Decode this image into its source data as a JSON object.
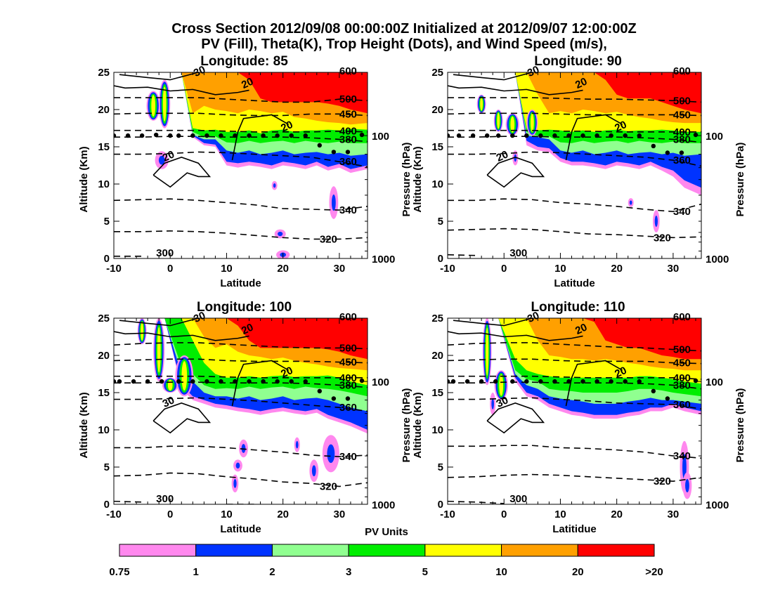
{
  "header": {
    "title_line1": "Cross Section 2012/09/08 00:00:00Z Initialized at 2012/09/07 12:00:00Z",
    "title_line2": "PV (Fill), Theta(K), Trop Height (Dots), and Wind Speed (m/s),"
  },
  "chart_data": [
    {
      "type": "contour",
      "title": "Longitude:   85",
      "longitude": 85,
      "xlabel": "Latitude",
      "ylabel": "Altitude (Km)",
      "ylabel_right": "Pressure (hPa)",
      "xlim": [
        -10,
        35
      ],
      "ylim": [
        0,
        25
      ],
      "xticks": [
        "-10",
        "0",
        "10",
        "20",
        "30"
      ],
      "yticks": [
        "0",
        "5",
        "10",
        "15",
        "20",
        "25"
      ],
      "yticks_right": [
        {
          "label": "100",
          "alt": 16.5
        },
        {
          "label": "1000",
          "alt": 0
        }
      ],
      "theta_contours": [
        {
          "label": "600",
          "y": [
            25.2,
            25.2,
            25.2,
            25.2,
            25.2,
            25.2,
            25.2,
            25.2,
            25.2,
            25.2
          ]
        },
        {
          "label": "500",
          "y": [
            21.6,
            21.6,
            21.6,
            21.6,
            21.4,
            21.2,
            21.0,
            21.0,
            21.4,
            21.2
          ]
        },
        {
          "label": "450",
          "y": [
            19.4,
            19.5,
            19.5,
            19.5,
            19.3,
            19.2,
            19.2,
            19.4,
            19.4,
            19.2
          ]
        },
        {
          "label": "400",
          "y": [
            17.2,
            17.2,
            17.2,
            17.2,
            17.1,
            17.0,
            17.0,
            17.0,
            17.1,
            17.0
          ]
        },
        {
          "label": "380",
          "y": [
            16.3,
            16.3,
            16.4,
            16.4,
            16.3,
            16.3,
            16.3,
            16.2,
            16.0,
            15.7
          ]
        },
        {
          "label": "360",
          "y": [
            14.0,
            14.0,
            14.1,
            14.3,
            14.2,
            14.0,
            13.8,
            13.6,
            13.0,
            12.3
          ]
        },
        {
          "label": "340",
          "y": [
            7.8,
            7.9,
            8.0,
            7.8,
            7.5,
            7.2,
            6.7,
            6.6,
            6.5,
            7.0
          ]
        },
        {
          "label": "320",
          "y": [
            3.6,
            3.6,
            3.7,
            3.6,
            3.4,
            3.1,
            2.8,
            2.6,
            2.6,
            2.8
          ]
        },
        {
          "label": "300",
          "y": [
            0.3,
            0.3,
            null,
            null,
            null,
            null,
            null,
            null,
            null,
            null
          ]
        }
      ],
      "theta_x": [
        -10,
        -5,
        0,
        5,
        10,
        15,
        20,
        25,
        30,
        35
      ],
      "trop_dots": [
        [
          -10,
          16.5
        ],
        [
          -7.5,
          16.5
        ],
        [
          -5,
          16.5
        ],
        [
          -2.5,
          16.6
        ],
        [
          0,
          16.5
        ],
        [
          1.5,
          16.5
        ],
        [
          4,
          16.5
        ],
        [
          6.5,
          16.5
        ],
        [
          9,
          16.5
        ],
        [
          11.5,
          16.5
        ],
        [
          14,
          16.5
        ],
        [
          16.5,
          16.5
        ],
        [
          19,
          16.5
        ],
        [
          21.5,
          16.5
        ],
        [
          24,
          16.5
        ],
        [
          26.5,
          15.2
        ],
        [
          29,
          14.3
        ],
        [
          31.5,
          14.3
        ],
        [
          34,
          16.6
        ]
      ],
      "wind_labels": [
        "30",
        "20",
        "20",
        "20"
      ]
    },
    {
      "type": "contour",
      "title": "Longitude:   90",
      "longitude": 90,
      "xlabel": "Latitude",
      "ylabel": "Altitude (Km)",
      "ylabel_right": "Pressure (hPa)",
      "xlim": [
        -10,
        35
      ],
      "ylim": [
        0,
        25
      ],
      "xticks": [
        "-10",
        "0",
        "10",
        "20",
        "30"
      ],
      "yticks": [
        "0",
        "5",
        "10",
        "15",
        "20",
        "25"
      ],
      "yticks_right": [
        {
          "label": "100",
          "alt": 16.5
        },
        {
          "label": "1000",
          "alt": 0
        }
      ],
      "theta_contours": [
        {
          "label": "600",
          "y": [
            25.2,
            25.2,
            25.2,
            25.2,
            25.2,
            25.2,
            25.2,
            25.2,
            25.2,
            25.2
          ]
        },
        {
          "label": "500",
          "y": [
            21.6,
            21.6,
            21.6,
            21.6,
            21.5,
            21.4,
            21.4,
            21.3,
            21.2,
            21.0
          ]
        },
        {
          "label": "450",
          "y": [
            19.4,
            19.5,
            19.5,
            19.5,
            19.4,
            19.3,
            19.3,
            19.3,
            19.3,
            19.2
          ]
        },
        {
          "label": "400",
          "y": [
            17.2,
            17.2,
            17.2,
            17.2,
            17.1,
            17.1,
            17.0,
            17.0,
            17.0,
            17.0
          ]
        },
        {
          "label": "380",
          "y": [
            16.3,
            16.3,
            16.4,
            16.4,
            16.3,
            16.3,
            16.3,
            16.2,
            16.0,
            15.6
          ]
        },
        {
          "label": "360",
          "y": [
            14.0,
            14.0,
            14.1,
            14.3,
            14.2,
            14.0,
            13.8,
            13.6,
            13.2,
            12.4
          ]
        },
        {
          "label": "340",
          "y": [
            7.8,
            7.8,
            8.0,
            7.9,
            7.5,
            7.3,
            7.0,
            6.6,
            6.3,
            7.3
          ]
        },
        {
          "label": "320",
          "y": [
            3.8,
            3.9,
            4.0,
            3.9,
            3.6,
            3.3,
            3.2,
            3.0,
            2.8,
            2.9
          ]
        },
        {
          "label": "300",
          "y": [
            0.5,
            0.4,
            null,
            null,
            null,
            null,
            null,
            null,
            null,
            null
          ]
        }
      ],
      "theta_x": [
        -10,
        -5,
        0,
        5,
        10,
        15,
        20,
        25,
        30,
        35
      ],
      "trop_dots": [
        [
          -10,
          16.5
        ],
        [
          -8,
          16.5
        ],
        [
          -5.5,
          16.5
        ],
        [
          -3,
          16.5
        ],
        [
          -1,
          16.5
        ],
        [
          1.5,
          16.5
        ],
        [
          4,
          16.5
        ],
        [
          6.5,
          16.5
        ],
        [
          9,
          16.5
        ],
        [
          11.5,
          16.5
        ],
        [
          14,
          16.5
        ],
        [
          16.5,
          16.5
        ],
        [
          19,
          16.5
        ],
        [
          21.5,
          16.5
        ],
        [
          24,
          16.5
        ],
        [
          26.5,
          15.1
        ],
        [
          29,
          14.2
        ],
        [
          31.5,
          14.2
        ],
        [
          34,
          16.6
        ]
      ],
      "wind_labels": [
        "30",
        "20",
        "20",
        "20"
      ]
    },
    {
      "type": "contour",
      "title": "Longitude:  100",
      "longitude": 100,
      "xlabel": "Latitude",
      "ylabel": "Altitude (Km)",
      "ylabel_right": "Pressure (hPa)",
      "xlim": [
        -10,
        35
      ],
      "ylim": [
        0,
        25
      ],
      "xticks": [
        "-10",
        "0",
        "10",
        "20",
        "30"
      ],
      "yticks": [
        "0",
        "5",
        "10",
        "15",
        "20",
        "25"
      ],
      "yticks_right": [
        {
          "label": "100",
          "alt": 16.5
        },
        {
          "label": "1000",
          "alt": 0
        }
      ],
      "theta_contours": [
        {
          "label": "600",
          "y": [
            25.2,
            25.2,
            25.2,
            25.2,
            25.2,
            25.2,
            25.2,
            25.2,
            25.2,
            25.2
          ]
        },
        {
          "label": "500",
          "y": [
            21.4,
            21.6,
            21.7,
            21.7,
            21.5,
            21.3,
            21.1,
            21.0,
            21.0,
            20.9
          ]
        },
        {
          "label": "450",
          "y": [
            19.3,
            19.4,
            19.5,
            19.5,
            19.3,
            19.2,
            19.2,
            19.2,
            19.1,
            19.0
          ]
        },
        {
          "label": "400",
          "y": [
            17.2,
            17.2,
            17.2,
            17.2,
            17.1,
            17.0,
            17.0,
            17.0,
            17.0,
            17.0
          ]
        },
        {
          "label": "380",
          "y": [
            16.3,
            16.3,
            16.4,
            16.4,
            16.3,
            16.3,
            16.3,
            16.2,
            16.0,
            15.7
          ]
        },
        {
          "label": "360",
          "y": [
            14.1,
            14.1,
            14.2,
            14.3,
            14.1,
            13.9,
            13.6,
            13.3,
            13.0,
            12.5
          ]
        },
        {
          "label": "340",
          "y": [
            7.6,
            7.6,
            7.8,
            7.8,
            7.6,
            7.3,
            7.0,
            6.6,
            6.4,
            6.6
          ]
        },
        {
          "label": "320",
          "y": [
            3.8,
            3.9,
            4.2,
            4.1,
            3.7,
            3.4,
            3.0,
            2.8,
            2.4,
            2.9
          ]
        },
        {
          "label": "300",
          "y": [
            0.4,
            0.3,
            null,
            null,
            0.0,
            0.0,
            null,
            null,
            null,
            null
          ]
        }
      ],
      "theta_x": [
        -10,
        -5,
        0,
        5,
        10,
        15,
        20,
        25,
        30,
        35
      ],
      "trop_dots": [
        [
          -10,
          16.5
        ],
        [
          -9,
          16.5
        ],
        [
          -6.5,
          16.5
        ],
        [
          -4,
          16.5
        ],
        [
          -1.5,
          16.5
        ],
        [
          1.5,
          16.5
        ],
        [
          4,
          16.5
        ],
        [
          6.5,
          16.5
        ],
        [
          9,
          16.5
        ],
        [
          11.5,
          16.5
        ],
        [
          14,
          16.5
        ],
        [
          16.5,
          16.5
        ],
        [
          19,
          16.5
        ],
        [
          21.5,
          16.5
        ],
        [
          24,
          16.5
        ],
        [
          26.5,
          15.2
        ],
        [
          29,
          14.2
        ],
        [
          31.5,
          14.2
        ],
        [
          34,
          16.6
        ]
      ],
      "wind_labels": [
        "30",
        "20",
        "20",
        "30",
        "30"
      ]
    },
    {
      "type": "contour",
      "title": "Longitude:  110",
      "longitude": 110,
      "xlabel": "Latitidue",
      "ylabel": "Altitude (Km)",
      "ylabel_right": "Pressure (hPa)",
      "xlim": [
        -10,
        35
      ],
      "ylim": [
        0,
        25
      ],
      "xticks": [
        "-10",
        "0",
        "10",
        "20",
        "30"
      ],
      "yticks": [
        "0",
        "5",
        "10",
        "15",
        "20",
        "25"
      ],
      "yticks_right": [
        {
          "label": "100",
          "alt": 16.5
        },
        {
          "label": "1000",
          "alt": 0
        }
      ],
      "theta_contours": [
        {
          "label": "600",
          "y": [
            25.2,
            25.2,
            25.2,
            25.2,
            25.2,
            25.2,
            25.2,
            25.2,
            25.2,
            25.2
          ]
        },
        {
          "label": "500",
          "y": [
            21.4,
            21.6,
            21.7,
            21.7,
            21.5,
            21.3,
            21.1,
            21.0,
            20.8,
            20.6
          ]
        },
        {
          "label": "450",
          "y": [
            19.3,
            19.4,
            19.5,
            19.5,
            19.3,
            19.2,
            19.2,
            19.2,
            19.0,
            18.9
          ]
        },
        {
          "label": "400",
          "y": [
            17.2,
            17.2,
            17.2,
            17.2,
            17.1,
            17.0,
            17.0,
            17.0,
            17.0,
            16.8
          ]
        },
        {
          "label": "380",
          "y": [
            16.3,
            16.3,
            16.4,
            16.4,
            16.3,
            16.3,
            16.3,
            16.2,
            16.0,
            15.5
          ]
        },
        {
          "label": "360",
          "y": [
            14.1,
            14.1,
            14.2,
            14.3,
            14.1,
            13.9,
            13.6,
            13.5,
            13.4,
            12.8
          ]
        },
        {
          "label": "340",
          "y": [
            7.8,
            7.8,
            7.9,
            7.9,
            7.6,
            7.5,
            7.3,
            7.0,
            6.5,
            6.2
          ]
        },
        {
          "label": "320",
          "y": [
            3.6,
            3.7,
            3.9,
            4.0,
            3.9,
            3.7,
            3.5,
            3.3,
            3.1,
            3.6
          ]
        },
        {
          "label": "300",
          "y": [
            0.4,
            0.3,
            0.1,
            null,
            null,
            null,
            null,
            null,
            null,
            null
          ]
        }
      ],
      "theta_x": [
        -10,
        -5,
        0,
        5,
        10,
        15,
        20,
        25,
        30,
        35
      ],
      "trop_dots": [
        [
          -10,
          16.5
        ],
        [
          -9,
          16.5
        ],
        [
          -6.5,
          16.5
        ],
        [
          -4,
          16.5
        ],
        [
          -1.5,
          16.5
        ],
        [
          1.5,
          16.5
        ],
        [
          4,
          16.5
        ],
        [
          6.5,
          16.5
        ],
        [
          9,
          16.5
        ],
        [
          11.5,
          16.5
        ],
        [
          14,
          16.5
        ],
        [
          16.5,
          16.5
        ],
        [
          19,
          16.5
        ],
        [
          21.5,
          16.5
        ],
        [
          24,
          16.5
        ],
        [
          26.5,
          15.2
        ],
        [
          29,
          14.2
        ],
        [
          34,
          16.6
        ]
      ],
      "wind_labels": [
        "30",
        "20",
        "20",
        "30",
        "20"
      ]
    }
  ],
  "colorbar": {
    "title": "PV Units",
    "boundaries": [
      "0.75",
      "1",
      "2",
      "3",
      "5",
      "10",
      "20",
      ">20"
    ],
    "colors": [
      "#ff88ee",
      "#0033ff",
      "#90ff90",
      "#00ee00",
      "#ffff00",
      "#ffa000",
      "#ff0000"
    ]
  }
}
